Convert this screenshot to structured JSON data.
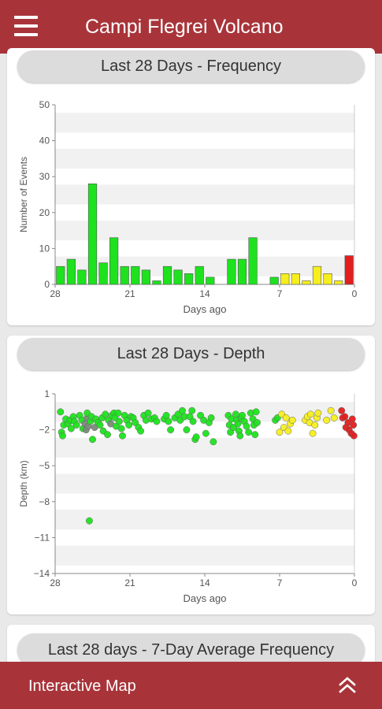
{
  "app_bar": {
    "title": "Campi Flegrei Volcano",
    "menu_icon": "hamburger-menu-icon"
  },
  "cards": {
    "frequency": {
      "title": "Last 28 Days - Frequency"
    },
    "depth": {
      "title": "Last 28 Days - Depth"
    },
    "average": {
      "title": "Last 28 days - 7-Day Average Frequency"
    }
  },
  "bottom_bar": {
    "label": "Interactive Map",
    "icon": "double-chevron-up-icon"
  },
  "colors": {
    "brand": "#a8343a",
    "green": "#1ee21e",
    "yellow": "#f6ee1e",
    "red": "#e21e1e"
  },
  "chart_data": [
    {
      "type": "bar",
      "title": "Last 28 Days - Frequency",
      "xlabel": "Days ago",
      "ylabel": "Number of Events",
      "xlim": [
        28,
        0
      ],
      "ylim": [
        0,
        50
      ],
      "xticks": [
        28,
        21,
        14,
        7,
        0
      ],
      "yticks": [
        0,
        10,
        20,
        30,
        40,
        50
      ],
      "grid": "horizontal bands",
      "x_days_ago": [
        27.5,
        26.5,
        25.5,
        24.5,
        23.5,
        22.5,
        21.5,
        20.5,
        19.5,
        18.5,
        17.5,
        16.5,
        15.5,
        14.5,
        13.5,
        12.5,
        11.5,
        10.5,
        9.5,
        8.5,
        7.5,
        6.5,
        5.5,
        4.5,
        3.5,
        2.5,
        1.5,
        0.5
      ],
      "values": [
        5,
        7,
        4,
        28,
        6,
        13,
        5,
        5,
        4,
        1,
        5,
        4,
        3,
        5,
        2,
        0,
        7,
        7,
        13,
        0,
        2,
        3,
        3,
        1,
        5,
        3,
        1,
        8
      ],
      "bar_colors": [
        "green",
        "green",
        "green",
        "green",
        "green",
        "green",
        "green",
        "green",
        "green",
        "green",
        "green",
        "green",
        "green",
        "green",
        "green",
        "green",
        "green",
        "green",
        "green",
        "green",
        "green",
        "yellow",
        "yellow",
        "yellow",
        "yellow",
        "yellow",
        "yellow",
        "red"
      ]
    },
    {
      "type": "scatter",
      "title": "Last 28 Days - Depth",
      "xlabel": "Days ago",
      "ylabel": "Depth (km)",
      "xlim": [
        28,
        0
      ],
      "ylim": [
        -14,
        1
      ],
      "xticks": [
        28,
        21,
        14,
        7,
        0
      ],
      "yticks": [
        1,
        -2,
        -5,
        -8,
        -11,
        -14
      ],
      "grid": "horizontal bands",
      "points": [
        {
          "x": 27.5,
          "y": -0.5,
          "c": "green"
        },
        {
          "x": 27.4,
          "y": -2.2,
          "c": "green"
        },
        {
          "x": 27.3,
          "y": -2.5,
          "c": "green"
        },
        {
          "x": 27.2,
          "y": -1.6,
          "c": "green"
        },
        {
          "x": 27,
          "y": -1.1,
          "c": "green"
        },
        {
          "x": 26.8,
          "y": -1.5,
          "c": "green"
        },
        {
          "x": 26.6,
          "y": -1.2,
          "c": "green"
        },
        {
          "x": 26.5,
          "y": -1.9,
          "c": "green"
        },
        {
          "x": 26.3,
          "y": -0.9,
          "c": "green"
        },
        {
          "x": 26.2,
          "y": -1.3,
          "c": "green"
        },
        {
          "x": 26,
          "y": -1.6,
          "c": "green"
        },
        {
          "x": 25.7,
          "y": -0.8,
          "c": "green"
        },
        {
          "x": 25.5,
          "y": -1.2,
          "c": "green"
        },
        {
          "x": 25.4,
          "y": -1.9,
          "c": "green"
        },
        {
          "x": 25.2,
          "y": -1.5,
          "c": "gray"
        },
        {
          "x": 25.1,
          "y": -2.0,
          "c": "gray"
        },
        {
          "x": 25,
          "y": -1.0,
          "c": "gray"
        },
        {
          "x": 25,
          "y": -0.6,
          "c": "green"
        },
        {
          "x": 24.9,
          "y": -1.7,
          "c": "gray"
        },
        {
          "x": 24.8,
          "y": -9.6,
          "c": "green"
        },
        {
          "x": 24.7,
          "y": -1.3,
          "c": "green"
        },
        {
          "x": 24.6,
          "y": -0.9,
          "c": "green"
        },
        {
          "x": 24.5,
          "y": -2.8,
          "c": "green"
        },
        {
          "x": 24.3,
          "y": -1.8,
          "c": "gray"
        },
        {
          "x": 24.2,
          "y": -1.1,
          "c": "green"
        },
        {
          "x": 24,
          "y": -1.4,
          "c": "green"
        },
        {
          "x": 23.8,
          "y": -1.6,
          "c": "green"
        },
        {
          "x": 23.6,
          "y": -1.0,
          "c": "green"
        },
        {
          "x": 23.5,
          "y": -2.1,
          "c": "green"
        },
        {
          "x": 23.3,
          "y": -0.7,
          "c": "green"
        },
        {
          "x": 23.1,
          "y": -2.4,
          "c": "green"
        },
        {
          "x": 23,
          "y": -1.2,
          "c": "green"
        },
        {
          "x": 22.8,
          "y": -1.5,
          "c": "gray"
        },
        {
          "x": 22.7,
          "y": -0.8,
          "c": "green"
        },
        {
          "x": 22.5,
          "y": -0.6,
          "c": "green"
        },
        {
          "x": 22.4,
          "y": -1.0,
          "c": "green"
        },
        {
          "x": 22.3,
          "y": -1.7,
          "c": "green"
        },
        {
          "x": 22.1,
          "y": -0.6,
          "c": "green"
        },
        {
          "x": 22,
          "y": -1.3,
          "c": "green"
        },
        {
          "x": 21.8,
          "y": -1.9,
          "c": "green"
        },
        {
          "x": 21.7,
          "y": -2.5,
          "c": "green"
        },
        {
          "x": 21.5,
          "y": -0.8,
          "c": "green"
        },
        {
          "x": 21.3,
          "y": -1.2,
          "c": "green"
        },
        {
          "x": 21.1,
          "y": -1.6,
          "c": "green"
        },
        {
          "x": 20.9,
          "y": -0.9,
          "c": "green"
        },
        {
          "x": 20.7,
          "y": -1.0,
          "c": "green"
        },
        {
          "x": 20.5,
          "y": -1.4,
          "c": "green"
        },
        {
          "x": 20.2,
          "y": -1.8,
          "c": "green"
        },
        {
          "x": 20,
          "y": -2.1,
          "c": "green"
        },
        {
          "x": 19.7,
          "y": -0.8,
          "c": "green"
        },
        {
          "x": 19.5,
          "y": -1.2,
          "c": "green"
        },
        {
          "x": 19.3,
          "y": -0.6,
          "c": "green"
        },
        {
          "x": 19,
          "y": -1.1,
          "c": "green"
        },
        {
          "x": 18.7,
          "y": -1.0,
          "c": "green"
        },
        {
          "x": 18.5,
          "y": -1.3,
          "c": "green"
        },
        {
          "x": 17.8,
          "y": -1.1,
          "c": "green"
        },
        {
          "x": 17.6,
          "y": -0.8,
          "c": "green"
        },
        {
          "x": 17.4,
          "y": -1.3,
          "c": "green"
        },
        {
          "x": 17.2,
          "y": -2.0,
          "c": "green"
        },
        {
          "x": 16.8,
          "y": -1.0,
          "c": "green"
        },
        {
          "x": 16.5,
          "y": -0.7,
          "c": "green"
        },
        {
          "x": 16.3,
          "y": -1.2,
          "c": "green"
        },
        {
          "x": 16.1,
          "y": -0.4,
          "c": "green"
        },
        {
          "x": 15.9,
          "y": -0.9,
          "c": "green"
        },
        {
          "x": 15.7,
          "y": -2.0,
          "c": "green"
        },
        {
          "x": 15.4,
          "y": -0.9,
          "c": "green"
        },
        {
          "x": 15.2,
          "y": -0.4,
          "c": "green"
        },
        {
          "x": 15.1,
          "y": -1.3,
          "c": "green"
        },
        {
          "x": 14.9,
          "y": -2.8,
          "c": "green"
        },
        {
          "x": 14.8,
          "y": -2.6,
          "c": "green"
        },
        {
          "x": 14.4,
          "y": -0.8,
          "c": "green"
        },
        {
          "x": 14.1,
          "y": -1.2,
          "c": "green"
        },
        {
          "x": 13.9,
          "y": -2.3,
          "c": "green"
        },
        {
          "x": 13.6,
          "y": -1.4,
          "c": "green"
        },
        {
          "x": 13.4,
          "y": -1.0,
          "c": "green"
        },
        {
          "x": 13.2,
          "y": -3.0,
          "c": "green"
        },
        {
          "x": 11.8,
          "y": -0.8,
          "c": "green"
        },
        {
          "x": 11.7,
          "y": -1.6,
          "c": "green"
        },
        {
          "x": 11.6,
          "y": -2.2,
          "c": "green"
        },
        {
          "x": 11.5,
          "y": -1.1,
          "c": "green"
        },
        {
          "x": 11.3,
          "y": -1.8,
          "c": "green"
        },
        {
          "x": 11.1,
          "y": -0.7,
          "c": "green"
        },
        {
          "x": 11,
          "y": -1.2,
          "c": "green"
        },
        {
          "x": 10.9,
          "y": -1.5,
          "c": "green"
        },
        {
          "x": 10.8,
          "y": -2.1,
          "c": "green"
        },
        {
          "x": 10.7,
          "y": -2.5,
          "c": "green"
        },
        {
          "x": 10.6,
          "y": -1.0,
          "c": "green"
        },
        {
          "x": 10.5,
          "y": -0.8,
          "c": "green"
        },
        {
          "x": 10.3,
          "y": -1.3,
          "c": "green"
        },
        {
          "x": 10.1,
          "y": -1.7,
          "c": "green"
        },
        {
          "x": 9.9,
          "y": -2.2,
          "c": "green"
        },
        {
          "x": 9.7,
          "y": -0.6,
          "c": "green"
        },
        {
          "x": 9.5,
          "y": -1.1,
          "c": "green"
        },
        {
          "x": 9.4,
          "y": -1.6,
          "c": "green"
        },
        {
          "x": 9.3,
          "y": -2.4,
          "c": "green"
        },
        {
          "x": 9.2,
          "y": -0.5,
          "c": "green"
        },
        {
          "x": 9.1,
          "y": -1.4,
          "c": "green"
        },
        {
          "x": 7.4,
          "y": -1.2,
          "c": "green"
        },
        {
          "x": 7.2,
          "y": -1.0,
          "c": "green"
        },
        {
          "x": 7,
          "y": -2.2,
          "c": "yellow"
        },
        {
          "x": 6.8,
          "y": -0.7,
          "c": "yellow"
        },
        {
          "x": 6.6,
          "y": -1.8,
          "c": "yellow"
        },
        {
          "x": 6.4,
          "y": -1.0,
          "c": "yellow"
        },
        {
          "x": 6.2,
          "y": -2.1,
          "c": "yellow"
        },
        {
          "x": 6,
          "y": -1.5,
          "c": "yellow"
        },
        {
          "x": 5.8,
          "y": -1.2,
          "c": "yellow"
        },
        {
          "x": 4.6,
          "y": -1.2,
          "c": "yellow"
        },
        {
          "x": 4.4,
          "y": -0.9,
          "c": "yellow"
        },
        {
          "x": 4.2,
          "y": -1.4,
          "c": "yellow"
        },
        {
          "x": 4.1,
          "y": -0.7,
          "c": "yellow"
        },
        {
          "x": 3.9,
          "y": -2.3,
          "c": "yellow"
        },
        {
          "x": 3.7,
          "y": -1.6,
          "c": "yellow"
        },
        {
          "x": 3.5,
          "y": -1.0,
          "c": "yellow"
        },
        {
          "x": 3.4,
          "y": -0.6,
          "c": "yellow"
        },
        {
          "x": 2.6,
          "y": -1.2,
          "c": "yellow"
        },
        {
          "x": 2.2,
          "y": -0.4,
          "c": "yellow"
        },
        {
          "x": 1.9,
          "y": -1.0,
          "c": "yellow"
        },
        {
          "x": 1.2,
          "y": -0.4,
          "c": "red"
        },
        {
          "x": 1.1,
          "y": -1.0,
          "c": "red"
        },
        {
          "x": 0.9,
          "y": -0.9,
          "c": "red"
        },
        {
          "x": 0.8,
          "y": -1.8,
          "c": "red"
        },
        {
          "x": 0.6,
          "y": -1.4,
          "c": "red"
        },
        {
          "x": 0.5,
          "y": -2.0,
          "c": "red"
        },
        {
          "x": 0.3,
          "y": -2.3,
          "c": "red"
        },
        {
          "x": 0.2,
          "y": -1.1,
          "c": "red"
        },
        {
          "x": 0.1,
          "y": -1.6,
          "c": "red"
        },
        {
          "x": 0.05,
          "y": -2.5,
          "c": "red"
        }
      ]
    }
  ]
}
